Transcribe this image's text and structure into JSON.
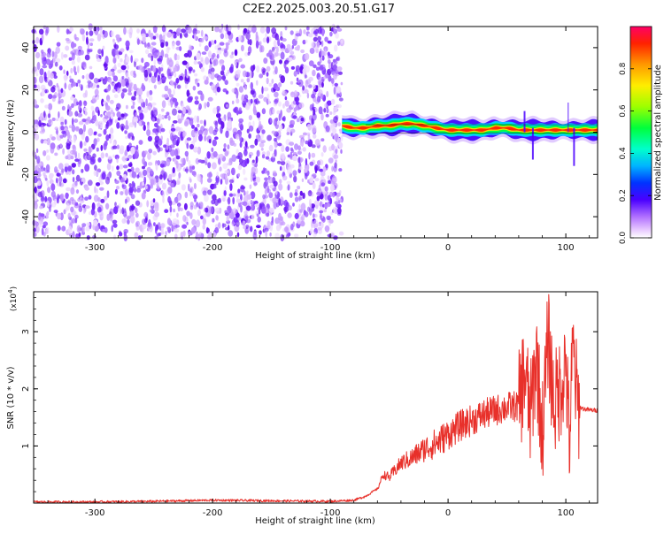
{
  "title": "C2E2.2025.003.20.51.G17",
  "chart_data": [
    {
      "type": "heatmap",
      "xlabel": "Height of straight line (km)",
      "ylabel": "Frequency (Hz)",
      "xlim": [
        -352,
        127
      ],
      "ylim": [
        -50,
        50
      ],
      "xticks": [
        -300,
        -200,
        -100,
        0,
        100
      ],
      "yticks": [
        -40,
        -20,
        0,
        20,
        40
      ],
      "noise_region_x": [
        -352,
        -90
      ],
      "noise_freq_range": [
        -50,
        50
      ],
      "signal_region_x": [
        -90,
        127
      ],
      "signal_track": {
        "x": [
          -90,
          -80,
          -70,
          -60,
          -50,
          -40,
          -30,
          -20,
          -10,
          0,
          10,
          20,
          30,
          40,
          50,
          60,
          70,
          80,
          90,
          100,
          110,
          120,
          127
        ],
        "frequency": [
          3,
          2,
          2,
          3,
          3,
          4,
          4,
          3,
          2,
          1,
          1,
          1,
          1,
          2,
          2,
          1,
          1,
          1,
          1,
          1,
          1,
          1,
          1
        ]
      },
      "colorbar": {
        "label": "Normalized spectral amplitude",
        "range": [
          0.0,
          1.0
        ],
        "ticks": [
          0.0,
          0.2,
          0.4,
          0.6,
          0.8
        ]
      }
    },
    {
      "type": "line",
      "xlabel": "Height of straight line (km)",
      "ylabel": "SNR (10 * v/v)",
      "multiplier": "(x10",
      "multiplier_exp": "4",
      "multiplier_close": ")",
      "xlim": [
        -352,
        127
      ],
      "ylim": [
        0,
        3.7
      ],
      "xticks": [
        -300,
        -200,
        -100,
        0,
        100
      ],
      "yticks": [
        1,
        2,
        3
      ],
      "color": "#e8302a",
      "series": [
        {
          "x": [
            -352,
            -300,
            -250,
            -200,
            -150,
            -100,
            -80,
            -70,
            -60,
            -55,
            -50,
            -40,
            -30,
            -20,
            -10,
            0,
            10,
            20,
            30,
            40,
            50,
            60,
            65,
            70,
            75,
            80,
            85,
            90,
            95,
            100,
            103,
            106,
            110,
            115,
            120,
            127
          ],
          "values": [
            0.02,
            0.02,
            0.03,
            0.05,
            0.04,
            0.03,
            0.05,
            0.12,
            0.25,
            0.5,
            0.45,
            0.7,
            0.8,
            0.95,
            1.05,
            1.2,
            1.35,
            1.45,
            1.55,
            1.62,
            1.68,
            1.7,
            2.3,
            1.5,
            2.6,
            1.2,
            2.9,
            1.7,
            2.0,
            2.5,
            1.0,
            2.7,
            1.7,
            1.65,
            1.63,
            1.62
          ]
        }
      ]
    }
  ]
}
